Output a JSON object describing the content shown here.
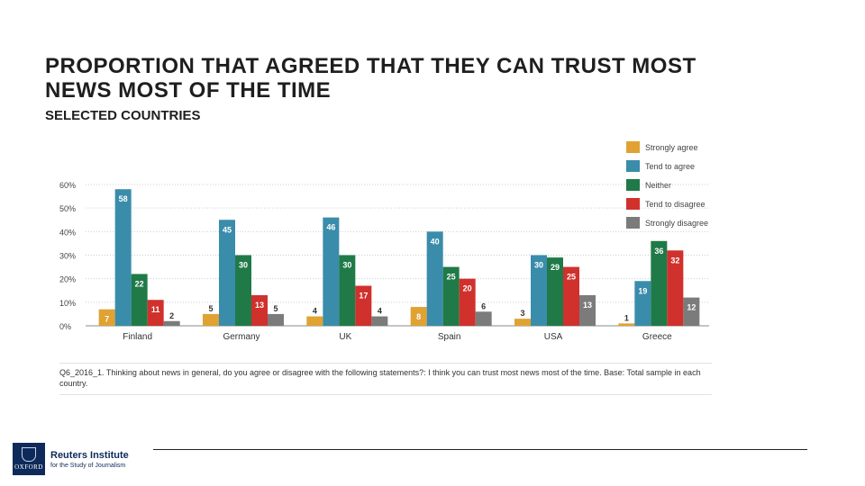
{
  "title": "PROPORTION THAT AGREED THAT THEY CAN TRUST MOST NEWS MOST OF THE TIME",
  "subtitle": "SELECTED COUNTRIES",
  "note": "Q6_2016_1. Thinking about news in general, do you agree or disagree with the following statements?: I think you can trust most news most of the time. Base: Total sample in each country.",
  "logo": {
    "name": "Reuters Institute",
    "sub": "for the Study of Journalism",
    "crest_word": "OXFORD"
  },
  "chart_data": {
    "type": "bar",
    "categories": [
      "Finland",
      "Germany",
      "UK",
      "Spain",
      "USA",
      "Greece"
    ],
    "series": [
      {
        "name": "Strongly agree",
        "color": "#e0a232",
        "values": [
          7,
          5,
          4,
          8,
          3,
          1
        ]
      },
      {
        "name": "Tend to agree",
        "color": "#3a8cab",
        "values": [
          58,
          45,
          46,
          40,
          30,
          19
        ]
      },
      {
        "name": "Neither",
        "color": "#1f7a48",
        "values": [
          22,
          30,
          30,
          25,
          29,
          36
        ]
      },
      {
        "name": "Tend to disagree",
        "color": "#d0312d",
        "values": [
          11,
          13,
          17,
          20,
          25,
          32
        ]
      },
      {
        "name": "Strongly disagree",
        "color": "#7b7b7b",
        "values": [
          2,
          5,
          4,
          6,
          13,
          12
        ]
      }
    ],
    "yticks": [
      "0%",
      "10%",
      "20%",
      "30%",
      "40%",
      "50%",
      "60%"
    ],
    "ylim": [
      0,
      60
    ],
    "grid": true,
    "legend": "top-right"
  }
}
